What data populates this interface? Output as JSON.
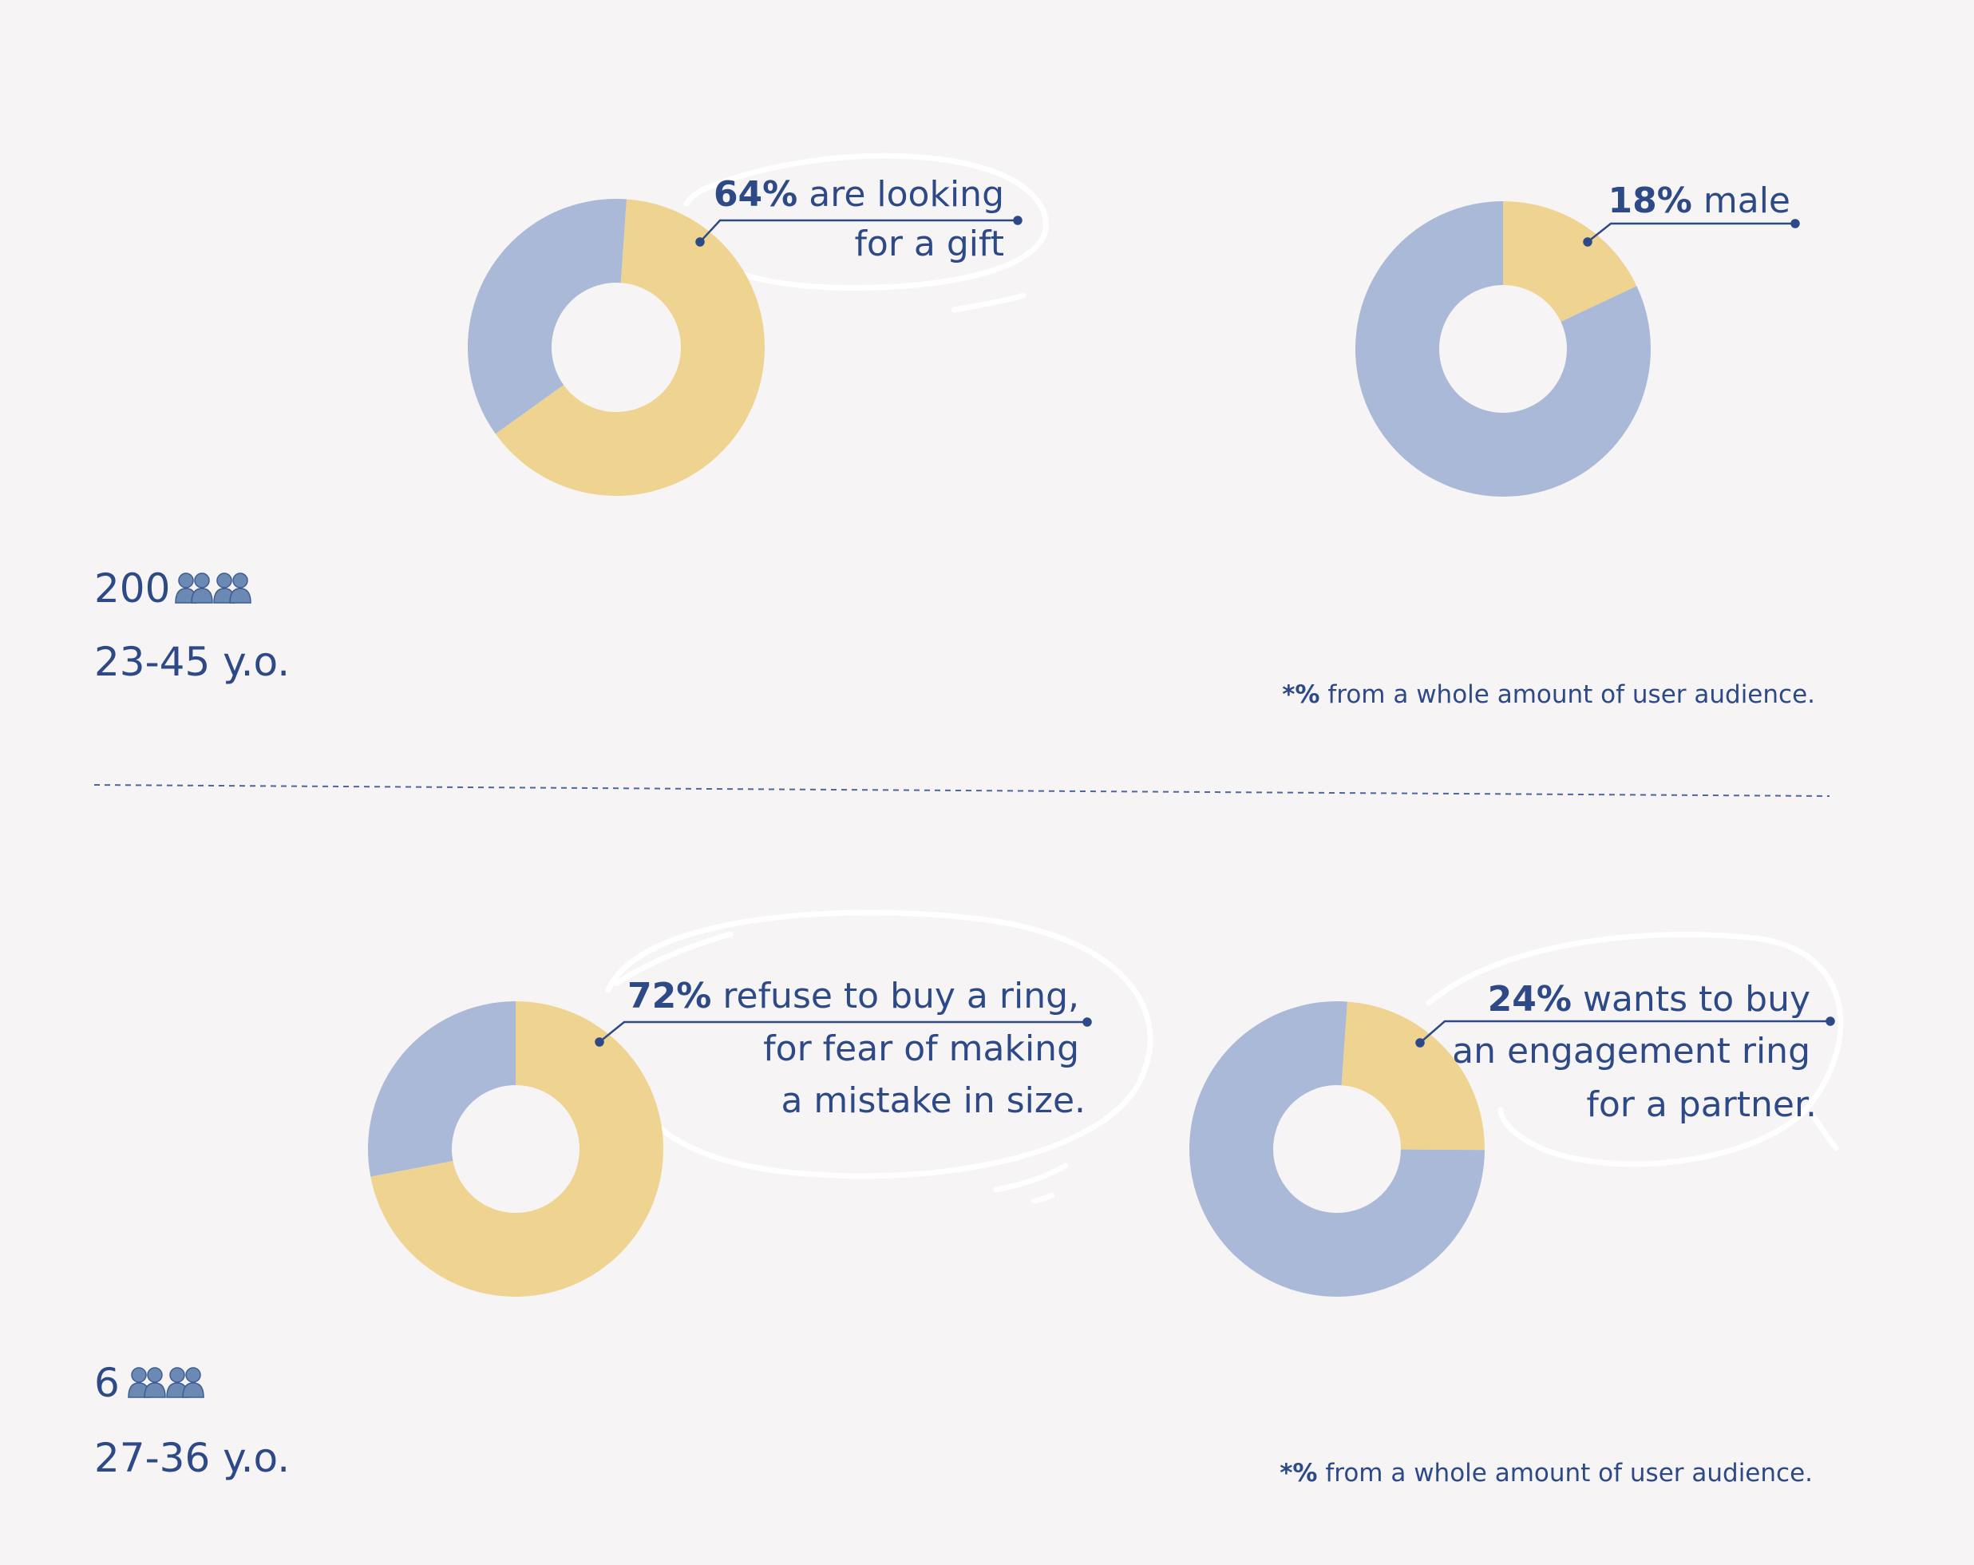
{
  "colors": {
    "highlight": "#efd491",
    "rest": "#aab9d7",
    "text": "#2e4a86",
    "background": "#f6f4f4"
  },
  "groups": [
    {
      "count": "200",
      "people_icon": "people-icon",
      "age": "23-45 y.o.",
      "footnote": {
        "mark": "*%",
        "text": " from a whole amount of user audience."
      }
    },
    {
      "count": "6",
      "people_icon": "people-icon",
      "age": "27-36 y.o.",
      "footnote": {
        "mark": "*%",
        "text": " from a whole amount of user audience."
      }
    }
  ],
  "chart_data": [
    {
      "type": "pie",
      "donut": true,
      "values": [
        64,
        36
      ],
      "label": {
        "value": "64%",
        "lines": [
          "are looking",
          "for a gift"
        ]
      }
    },
    {
      "type": "pie",
      "donut": true,
      "values": [
        18,
        82
      ],
      "label": {
        "value": "18%",
        "lines": [
          "male"
        ]
      }
    },
    {
      "type": "pie",
      "donut": true,
      "values": [
        72,
        28
      ],
      "label": {
        "value": "72%",
        "lines": [
          "refuse to buy a ring,",
          "for fear of making",
          "a mistake in size."
        ]
      }
    },
    {
      "type": "pie",
      "donut": true,
      "values": [
        24,
        76
      ],
      "label": {
        "value": "24%",
        "lines": [
          "wants to buy",
          "an engagement ring",
          "for a partner."
        ]
      }
    }
  ]
}
